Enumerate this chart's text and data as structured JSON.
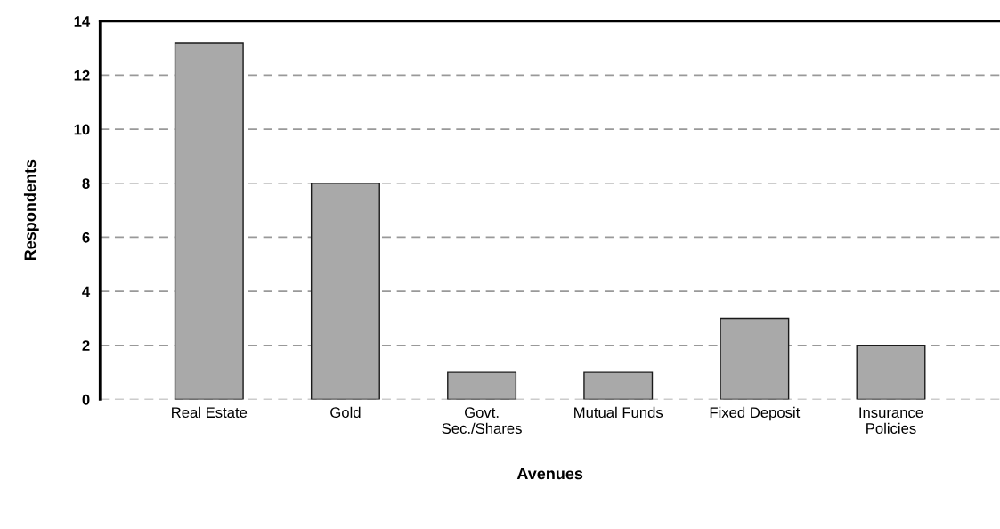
{
  "chart_data": {
    "type": "bar",
    "xlabel": "Avenues",
    "ylabel": "Respondents",
    "categories": [
      "Real Estate",
      "Gold",
      "Govt.\nSec./Shares",
      "Mutual Funds",
      "Fixed Deposit",
      "Insurance\nPolicies"
    ],
    "values": [
      13.2,
      8,
      1,
      1,
      3,
      2
    ],
    "color": "#a9a9a9",
    "ylim": [
      0,
      14
    ],
    "yticks": [
      0,
      2,
      4,
      6,
      8,
      10,
      12,
      14
    ],
    "grid": "y"
  }
}
